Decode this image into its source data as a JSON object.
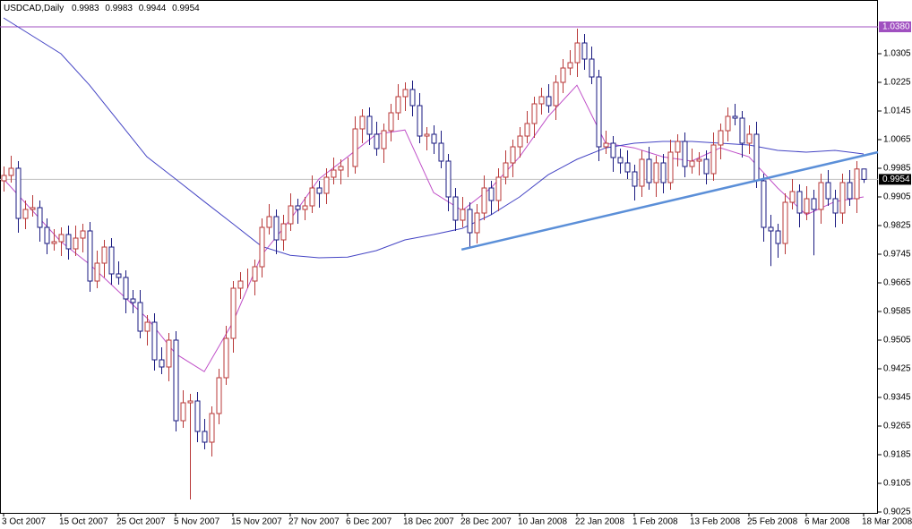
{
  "chart_data": {
    "type": "candlestick",
    "title": "USDCAD,Daily",
    "categories": [
      "3 Oct 2007",
      null,
      null,
      null,
      null,
      null,
      null,
      null,
      "15 Oct 2007",
      null,
      null,
      null,
      null,
      null,
      null,
      null,
      "25 Oct 2007",
      null,
      null,
      null,
      null,
      null,
      null,
      null,
      "5 Nov 2007",
      null,
      null,
      null,
      null,
      null,
      null,
      null,
      "15 Nov 2007",
      null,
      null,
      null,
      null,
      null,
      null,
      null,
      "27 Nov 2007",
      null,
      null,
      null,
      null,
      null,
      null,
      null,
      "6 Dec 2007",
      null,
      null,
      null,
      null,
      null,
      null,
      null,
      "18 Dec 2007",
      null,
      null,
      null,
      null,
      null,
      null,
      null,
      "28 Dec 2007",
      null,
      null,
      null,
      null,
      null,
      null,
      null,
      "10 Jan 2008",
      null,
      null,
      null,
      null,
      null,
      null,
      null,
      "22 Jan 2008",
      null,
      null,
      null,
      null,
      null,
      null,
      null,
      "1 Feb 2008",
      null,
      null,
      null,
      null,
      null,
      null,
      null,
      "13 Feb 2008",
      null,
      null,
      null,
      null,
      null,
      null,
      null,
      "25 Feb 2008",
      null,
      null,
      null,
      null,
      null,
      null,
      null,
      "6 Mar 2008",
      null,
      null,
      null,
      null,
      null,
      null,
      null,
      "18 Mar 2008"
    ],
    "open": [
      0.995,
      0.9965,
      0.9985,
      0.9845,
      0.987,
      0.9875,
      0.982,
      0.9775,
      0.978,
      0.98,
      0.976,
      0.979,
      0.981,
      0.967,
      0.972,
      0.9765,
      0.969,
      0.968,
      0.962,
      0.961,
      0.953,
      0.9555,
      0.945,
      0.943,
      0.9505,
      0.928,
      0.933,
      0.9335,
      0.925,
      0.922,
      0.93,
      0.94,
      0.951,
      0.965,
      0.967,
      0.967,
      0.971,
      0.982,
      0.985,
      0.9785,
      0.983,
      0.988,
      0.987,
      0.988,
      0.993,
      0.9915,
      0.996,
      0.998,
      0.999,
      0.999,
      1.0095,
      1.013,
      1.008,
      1.004,
      1.009,
      1.014,
      1.0185,
      1.0205,
      1.016,
      1.0075,
      1.008,
      1.0055,
      1.0005,
      0.9905,
      0.984,
      0.987,
      0.9805,
      0.986,
      0.993,
      0.9895,
      0.996,
      1.0,
      1.0045,
      1.0075,
      1.011,
      1.0165,
      1.0185,
      1.016,
      1.0225,
      1.0265,
      1.028,
      1.0335,
      1.029,
      1.024,
      1.0045,
      1.0055,
      1.0015,
      1.0,
      0.9975,
      0.9935,
      1.001,
      0.9945,
      1.0,
      0.9945,
      1.003,
      1.006,
      0.999,
      1.0005,
      1.001,
      0.997,
      1.005,
      1.009,
      1.013,
      1.0125,
      1.0055,
      1.008,
      0.995,
      0.982,
      0.981,
      0.9775,
      0.989,
      0.992,
      0.986,
      0.99,
      0.987,
      0.9945,
      0.99,
      0.986,
      0.9945,
      0.99,
      0.9983
    ],
    "high": [
      0.999,
      1.002,
      1.0005,
      0.9895,
      0.991,
      0.9895,
      0.9845,
      0.9815,
      0.982,
      0.9825,
      0.9825,
      0.983,
      0.9835,
      0.9755,
      0.9785,
      0.979,
      0.9725,
      0.97,
      0.9645,
      0.9645,
      0.9575,
      0.958,
      0.9485,
      0.9525,
      0.953,
      0.9365,
      0.9355,
      0.936,
      0.9285,
      0.932,
      0.9425,
      0.9545,
      0.967,
      0.9695,
      0.9705,
      0.973,
      0.9845,
      0.9885,
      0.987,
      0.9855,
      0.9915,
      0.99,
      0.9905,
      0.9965,
      0.995,
      0.9985,
      1.0015,
      1.001,
      1.0015,
      1.013,
      1.015,
      1.0155,
      1.0115,
      1.011,
      1.0165,
      1.022,
      1.0225,
      1.023,
      1.0195,
      1.01,
      1.0105,
      1.009,
      1.0025,
      0.993,
      0.9905,
      0.989,
      0.9885,
      0.9965,
      0.995,
      0.9985,
      1.0035,
      1.0065,
      1.01,
      1.0145,
      1.0185,
      1.021,
      1.022,
      1.0245,
      1.029,
      1.0315,
      1.0375,
      1.036,
      1.0325,
      1.026,
      1.009,
      1.0075,
      1.004,
      1.0035,
      0.9995,
      1.0035,
      1.0045,
      1.002,
      1.0025,
      1.0065,
      1.008,
      1.0085,
      1.004,
      1.003,
      1.0035,
      1.0085,
      1.011,
      1.0155,
      1.0165,
      1.0145,
      1.0105,
      1.0115,
      0.997,
      0.9855,
      0.983,
      0.9915,
      0.9955,
      0.994,
      0.9935,
      0.9925,
      0.997,
      0.998,
      0.9925,
      0.997,
      0.998,
      1.0005,
      0.9983
    ],
    "low": [
      0.992,
      0.9945,
      0.9805,
      0.9815,
      0.985,
      0.978,
      0.9745,
      0.9755,
      0.974,
      0.973,
      0.974,
      0.975,
      0.964,
      0.965,
      0.968,
      0.966,
      0.966,
      0.958,
      0.958,
      0.951,
      0.949,
      0.942,
      0.941,
      0.939,
      0.925,
      0.926,
      0.906,
      0.922,
      0.92,
      0.918,
      0.927,
      0.938,
      0.947,
      0.962,
      0.965,
      0.963,
      0.968,
      0.98,
      0.9745,
      0.9755,
      0.981,
      0.983,
      0.984,
      0.986,
      0.9875,
      0.9885,
      0.994,
      0.994,
      0.996,
      0.997,
      1.0055,
      1.005,
      1.002,
      1.0,
      1.006,
      1.012,
      1.0145,
      1.013,
      1.0055,
      1.0035,
      1.0025,
      0.9985,
      0.9865,
      0.981,
      0.982,
      0.9765,
      0.9775,
      0.984,
      0.9855,
      0.9865,
      0.994,
      0.996,
      1.0015,
      1.0055,
      1.007,
      1.0135,
      1.014,
      1.012,
      1.0195,
      1.0245,
      1.024,
      1.026,
      1.022,
      1.0005,
      1.0025,
      0.9975,
      0.997,
      0.9955,
      0.9895,
      0.9905,
      0.9925,
      0.9905,
      0.9915,
      0.9925,
      0.999,
      0.996,
      0.997,
      0.9965,
      0.994,
      0.995,
      1.001,
      1.006,
      1.0105,
      1.0015,
      1.0025,
      0.993,
      0.978,
      0.9712,
      0.9735,
      0.9745,
      0.987,
      0.982,
      0.984,
      0.9742,
      0.983,
      0.988,
      0.982,
      0.983,
      0.988,
      0.986,
      0.9944
    ],
    "close": [
      0.9965,
      0.9985,
      0.9845,
      0.987,
      0.9875,
      0.982,
      0.9775,
      0.978,
      0.98,
      0.976,
      0.979,
      0.981,
      0.967,
      0.972,
      0.9765,
      0.969,
      0.968,
      0.962,
      0.961,
      0.953,
      0.9555,
      0.945,
      0.943,
      0.9505,
      0.928,
      0.933,
      0.9335,
      0.925,
      0.922,
      0.93,
      0.94,
      0.951,
      0.965,
      0.967,
      0.967,
      0.971,
      0.982,
      0.985,
      0.9785,
      0.983,
      0.988,
      0.987,
      0.988,
      0.993,
      0.9915,
      0.996,
      0.998,
      0.999,
      0.999,
      1.0095,
      1.013,
      1.008,
      1.004,
      1.009,
      1.014,
      1.0185,
      1.0205,
      1.016,
      1.0075,
      1.008,
      1.0055,
      1.0005,
      0.9905,
      0.984,
      0.987,
      0.9805,
      0.986,
      0.993,
      0.9895,
      0.996,
      1.0,
      1.0045,
      1.0075,
      1.011,
      1.0165,
      1.0185,
      1.016,
      1.0225,
      1.0265,
      1.028,
      1.0335,
      1.029,
      1.024,
      1.0045,
      1.0055,
      1.0015,
      1.0,
      0.9975,
      0.9935,
      1.001,
      0.9945,
      1.0,
      0.9945,
      1.003,
      1.006,
      0.999,
      1.0005,
      1.001,
      0.997,
      1.005,
      1.009,
      1.013,
      1.0125,
      1.0055,
      1.008,
      0.995,
      0.982,
      0.981,
      0.9775,
      0.989,
      0.992,
      0.986,
      0.99,
      0.987,
      0.9945,
      0.99,
      0.986,
      0.9945,
      0.99,
      0.9983,
      0.9954
    ],
    "up_color": "#b83838",
    "down_color": "#1a1a80",
    "ma": [
      {
        "color": "#c050c8",
        "x": [
          0,
          4,
          8,
          12,
          16,
          20,
          24,
          28,
          32,
          36,
          40,
          44,
          48,
          52,
          56,
          60,
          64,
          68,
          72,
          76,
          80,
          84,
          88,
          92,
          96,
          100,
          104,
          108,
          112,
          116,
          120
        ],
        "values": [
          0.9955,
          0.9867,
          0.978,
          0.9717,
          0.9642,
          0.9567,
          0.9467,
          0.9417,
          0.9555,
          0.9742,
          0.9842,
          0.9955,
          1.0017,
          1.008,
          1.0092,
          0.9917,
          0.9867,
          0.993,
          1.0017,
          1.013,
          1.0217,
          1.0055,
          1.0042,
          1.0017,
          1.0005,
          1.0042,
          1.0017,
          0.993,
          0.9855,
          0.9892,
          0.9905
        ]
      },
      {
        "color": "#4444c4",
        "x": [
          0,
          4,
          8,
          12,
          16,
          20,
          24,
          28,
          32,
          36,
          40,
          44,
          48,
          52,
          56,
          60,
          64,
          68,
          72,
          76,
          80,
          84,
          88,
          92,
          96,
          100,
          104,
          108,
          112,
          116,
          120
        ],
        "values": [
          1.0405,
          1.0355,
          1.0305,
          1.0217,
          1.0117,
          1.0017,
          0.9955,
          0.9892,
          0.983,
          0.9767,
          0.9742,
          0.9735,
          0.9737,
          0.9755,
          0.9785,
          0.98,
          0.9817,
          0.9855,
          0.9905,
          0.9967,
          1.001,
          1.0042,
          1.0055,
          1.006,
          1.006,
          1.0055,
          1.005,
          1.0035,
          1.003,
          1.0035,
          1.0025
        ]
      }
    ],
    "trendline": {
      "color": "#5b8fd8",
      "x": [
        63.9,
        122
      ],
      "values": [
        0.9758,
        1.003
      ]
    },
    "level": {
      "value": 1.038,
      "label": "1.0380",
      "color": "#a050c0"
    },
    "current_color": "#c0c0c0",
    "xlim": [
      -0.5,
      122
    ],
    "ylim": [
      0.90225,
      1.0455
    ],
    "yticks": [
      1.0305,
      1.0225,
      1.0145,
      1.0065,
      0.9985,
      0.9905,
      0.9825,
      0.9745,
      0.9665,
      0.9585,
      0.9505,
      0.9425,
      0.9345,
      0.9265,
      0.9185,
      0.9105,
      0.9025
    ]
  }
}
